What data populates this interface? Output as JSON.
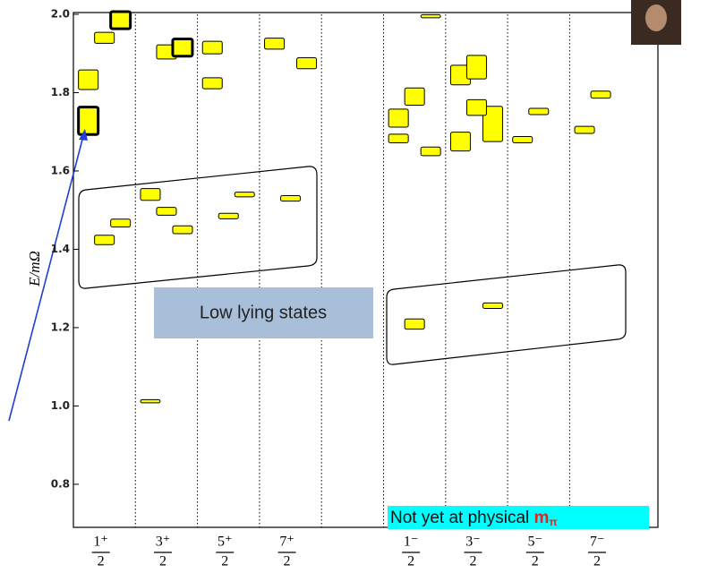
{
  "chart_data": {
    "type": "spectrum",
    "ylabel": "E/mΩ",
    "categories": [
      {
        "numerator": "1⁺",
        "denominator": "2"
      },
      {
        "numerator": "3⁺",
        "denominator": "2"
      },
      {
        "numerator": "5⁺",
        "denominator": "2"
      },
      {
        "numerator": "7⁺",
        "denominator": "2"
      },
      null,
      {
        "numerator": "1⁻",
        "denominator": "2"
      },
      {
        "numerator": "3⁻",
        "denominator": "2"
      },
      {
        "numerator": "5⁻",
        "denominator": "2"
      },
      {
        "numerator": "7⁻",
        "denominator": "2"
      }
    ],
    "columns": [
      {
        "values": [
          1.833,
          1.94,
          1.985,
          1.728,
          1.424,
          1.467
        ],
        "errors": [
          0.025,
          0.014,
          0.022,
          0.035,
          0.012,
          0.01
        ],
        "thick": [
          2,
          3
        ]
      },
      {
        "values": [
          1.54,
          1.497,
          1.45,
          1.012,
          1.904,
          1.915
        ],
        "errors": [
          0.015,
          0.01,
          0.01,
          0.004,
          0.018,
          0.022
        ],
        "thick": [
          5
        ]
      },
      {
        "values": [
          1.915,
          1.485,
          1.54,
          1.824
        ],
        "errors": [
          0.016,
          0.007,
          0.006,
          0.014
        ],
        "thick": []
      },
      {
        "values": [
          1.925,
          1.53,
          1.875
        ],
        "errors": [
          0.014,
          0.007,
          0.014
        ],
        "thick": []
      },
      {
        "values": [],
        "errors": [],
        "thick": []
      },
      {
        "values": [
          1.735,
          1.79,
          1.65,
          1.683,
          1.209,
          1.995
        ],
        "errors": [
          0.023,
          0.022,
          0.011,
          0.011,
          0.013,
          0.004
        ],
        "thick": []
      },
      {
        "values": [
          1.845,
          1.865,
          1.72,
          1.675,
          1.762,
          1.256
        ],
        "errors": [
          0.025,
          0.03,
          0.045,
          0.024,
          0.02,
          0.007
        ],
        "thick": []
      },
      {
        "values": [
          1.68,
          1.752
        ],
        "errors": [
          0.008,
          0.008
        ],
        "thick": []
      },
      {
        "values": [
          1.705,
          1.795
        ],
        "errors": [
          0.009,
          0.009
        ],
        "thick": []
      }
    ],
    "color": "#ffff00",
    "ylim": [
      0.69,
      2.0
    ],
    "yticks": [
      {
        "value": 2.0,
        "label": "2.0"
      },
      1.8,
      1.6,
      1.4,
      1.2,
      {
        "value": 1.0,
        "label": "1.0"
      },
      0.8
    ],
    "grid": "dotted-columns",
    "annotations": {
      "box": "Low lying states",
      "note": {
        "text": "Not yet at physical ",
        "symbol": "m",
        "subscript": "π"
      }
    }
  }
}
